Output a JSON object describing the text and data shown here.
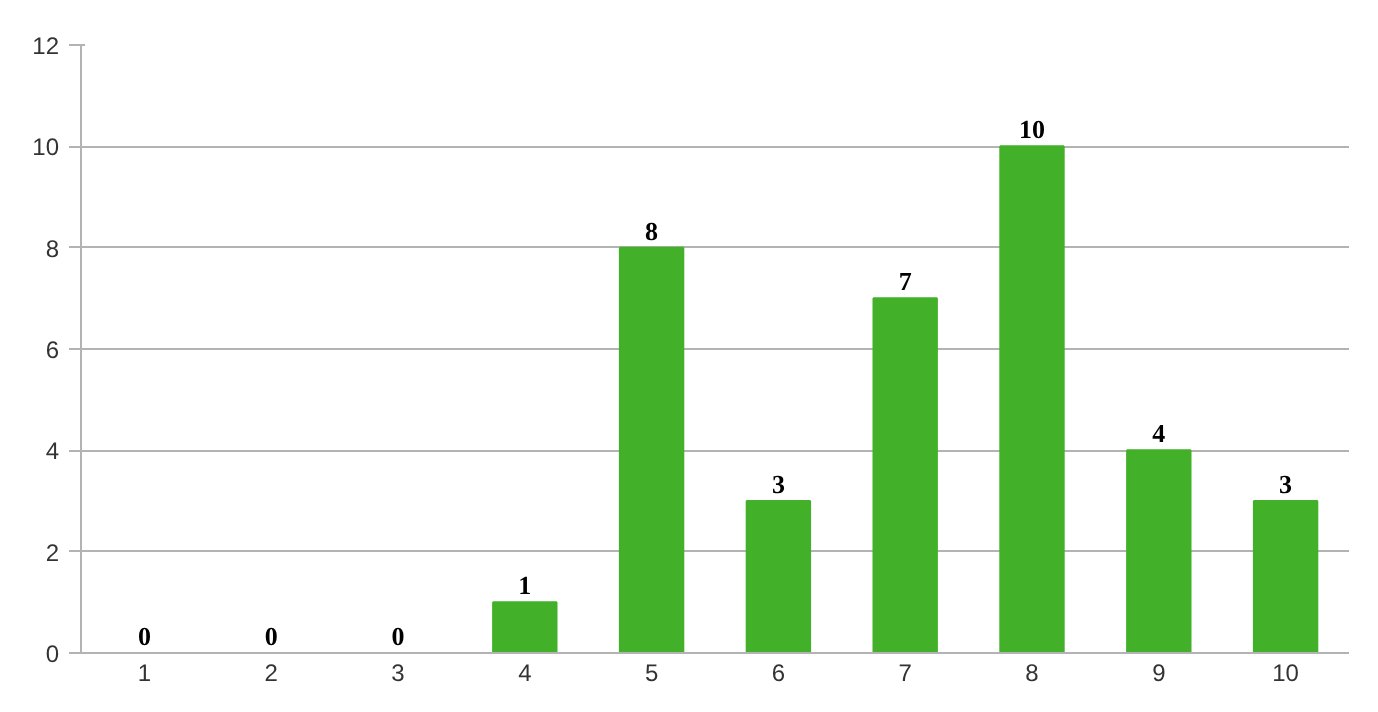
{
  "chart_data": {
    "type": "bar",
    "categories": [
      "1",
      "2",
      "3",
      "4",
      "5",
      "6",
      "7",
      "8",
      "9",
      "10"
    ],
    "values": [
      0,
      0,
      0,
      1,
      8,
      3,
      7,
      10,
      4,
      3
    ],
    "color": "#43b02a",
    "ylim": [
      0,
      12
    ],
    "yticks": [
      0,
      2,
      4,
      6,
      8,
      10,
      12
    ],
    "grid": "y",
    "data_labels": true
  }
}
